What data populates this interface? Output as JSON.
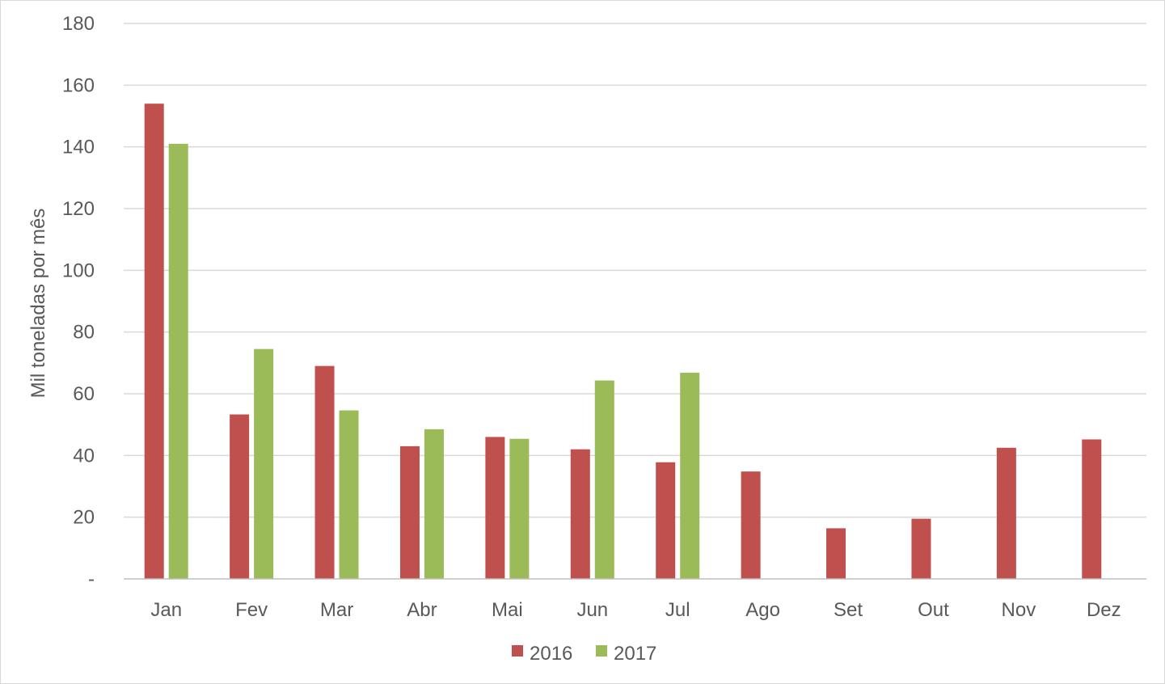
{
  "chart_data": {
    "type": "bar",
    "title": "",
    "xlabel": "",
    "ylabel": "Mil toneladas por mês",
    "ylim": [
      0,
      180
    ],
    "yticks": [
      {
        "value": 0,
        "label": "-"
      },
      {
        "value": 20,
        "label": "20"
      },
      {
        "value": 40,
        "label": "40"
      },
      {
        "value": 60,
        "label": "60"
      },
      {
        "value": 80,
        "label": "80"
      },
      {
        "value": 100,
        "label": "100"
      },
      {
        "value": 120,
        "label": "120"
      },
      {
        "value": 140,
        "label": "140"
      },
      {
        "value": 160,
        "label": "160"
      },
      {
        "value": 180,
        "label": "180"
      }
    ],
    "grid": true,
    "legend_position": "bottom",
    "categories": [
      "Jan",
      "Fev",
      "Mar",
      "Abr",
      "Mai",
      "Jun",
      "Jul",
      "Ago",
      "Set",
      "Out",
      "Nov",
      "Dez"
    ],
    "series": [
      {
        "name": "2016",
        "color": "#c0504d",
        "values": [
          154,
          53.3,
          69,
          43,
          46,
          42,
          37.8,
          34.8,
          16.4,
          19.5,
          42.5,
          45.2
        ]
      },
      {
        "name": "2017",
        "color": "#9bbb59",
        "values": [
          141,
          74.5,
          54.6,
          48.5,
          45.4,
          64.3,
          66.8,
          null,
          null,
          null,
          null,
          null
        ]
      }
    ],
    "colors": {
      "gridline": "#d9d9d9",
      "axis": "#bfbfbf",
      "text": "#595959"
    }
  }
}
